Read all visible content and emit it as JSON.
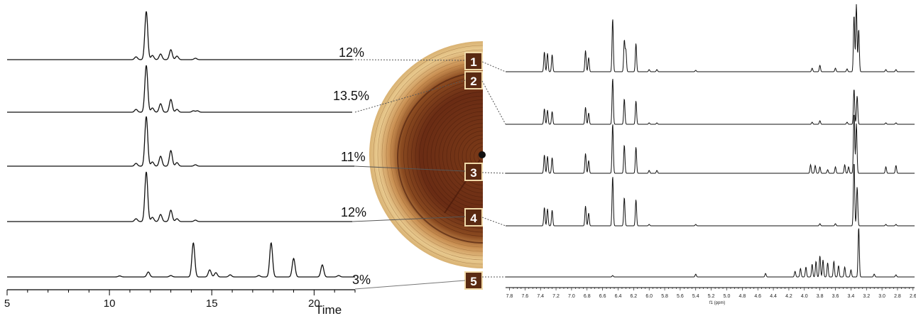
{
  "hplc": {
    "xaxis": {
      "ticks": [
        "5",
        "10",
        "15",
        "20"
      ],
      "label": "Time",
      "range": [
        5,
        22
      ]
    },
    "traces": [
      {
        "label": "12%",
        "peaks": [
          [
            11.3,
            4
          ],
          [
            11.8,
            68
          ],
          [
            12.1,
            6
          ],
          [
            12.5,
            8
          ],
          [
            13.0,
            14
          ],
          [
            13.3,
            5
          ],
          [
            14.2,
            2
          ]
        ]
      },
      {
        "label": "13.5%",
        "peaks": [
          [
            11.3,
            4
          ],
          [
            11.8,
            66
          ],
          [
            12.1,
            6
          ],
          [
            12.5,
            12
          ],
          [
            13.0,
            18
          ],
          [
            13.3,
            4
          ],
          [
            14.1,
            2
          ],
          [
            14.3,
            2
          ]
        ]
      },
      {
        "label": "11%",
        "peaks": [
          [
            11.3,
            4
          ],
          [
            11.8,
            70
          ],
          [
            12.1,
            6
          ],
          [
            12.5,
            14
          ],
          [
            13.0,
            22
          ],
          [
            13.3,
            5
          ],
          [
            14.2,
            2
          ]
        ]
      },
      {
        "label": "12%",
        "peaks": [
          [
            11.3,
            4
          ],
          [
            11.8,
            70
          ],
          [
            12.1,
            6
          ],
          [
            12.5,
            10
          ],
          [
            13.0,
            16
          ],
          [
            13.3,
            4
          ],
          [
            14.2,
            2
          ]
        ]
      },
      {
        "label": "3%",
        "peaks": [
          [
            10.5,
            1.5
          ],
          [
            11.9,
            7
          ],
          [
            13.0,
            2
          ],
          [
            14.1,
            48
          ],
          [
            14.9,
            10
          ],
          [
            15.2,
            6
          ],
          [
            15.9,
            3
          ],
          [
            17.3,
            2
          ],
          [
            17.9,
            48
          ],
          [
            19.0,
            26
          ],
          [
            20.4,
            17
          ],
          [
            21.2,
            2
          ]
        ]
      }
    ]
  },
  "wood": {
    "markers": [
      "1",
      "2",
      "3",
      "4",
      "5"
    ]
  },
  "nmr": {
    "xaxis": {
      "ticks": [
        "7.8",
        "7.6",
        "7.4",
        "7.2",
        "7.0",
        "6.8",
        "6.6",
        "6.4",
        "6.2",
        "6.0",
        "5.8",
        "5.6",
        "5.4",
        "5.2",
        "5.0",
        "4.8",
        "4.6",
        "4.4",
        "4.2",
        "4.0",
        "3.8",
        "3.6",
        "3.4",
        "3.2",
        "3.0",
        "2.8",
        "2.6"
      ],
      "label": "f1 (ppm)",
      "range": [
        7.85,
        2.58
      ]
    },
    "spectra": [
      {
        "peaks": [
          [
            7.35,
            28
          ],
          [
            7.31,
            26
          ],
          [
            7.25,
            24
          ],
          [
            6.82,
            30
          ],
          [
            6.78,
            20
          ],
          [
            6.47,
            75
          ],
          [
            6.32,
            44
          ],
          [
            6.3,
            30
          ],
          [
            6.17,
            40
          ],
          [
            6.0,
            3
          ],
          [
            5.9,
            3
          ],
          [
            5.4,
            2
          ],
          [
            3.9,
            5
          ],
          [
            3.8,
            9
          ],
          [
            3.6,
            5
          ],
          [
            3.45,
            4
          ],
          [
            3.36,
            80
          ],
          [
            3.33,
            95
          ],
          [
            3.3,
            60
          ],
          [
            2.95,
            3
          ],
          [
            2.82,
            3
          ]
        ]
      },
      {
        "peaks": [
          [
            7.35,
            22
          ],
          [
            7.31,
            20
          ],
          [
            7.25,
            18
          ],
          [
            6.82,
            24
          ],
          [
            6.78,
            16
          ],
          [
            6.47,
            65
          ],
          [
            6.32,
            36
          ],
          [
            6.17,
            33
          ],
          [
            6.0,
            2
          ],
          [
            5.9,
            2
          ],
          [
            3.9,
            3
          ],
          [
            3.8,
            5
          ],
          [
            3.45,
            3
          ],
          [
            3.36,
            50
          ],
          [
            3.32,
            40
          ],
          [
            2.95,
            2
          ],
          [
            2.82,
            2
          ]
        ]
      },
      {
        "peaks": [
          [
            7.35,
            26
          ],
          [
            7.31,
            24
          ],
          [
            7.25,
            22
          ],
          [
            6.82,
            28
          ],
          [
            6.78,
            18
          ],
          [
            6.47,
            70
          ],
          [
            6.32,
            40
          ],
          [
            6.17,
            37
          ],
          [
            6.0,
            4
          ],
          [
            5.9,
            4
          ],
          [
            3.92,
            12
          ],
          [
            3.86,
            11
          ],
          [
            3.8,
            9
          ],
          [
            3.7,
            5
          ],
          [
            3.6,
            9
          ],
          [
            3.48,
            12
          ],
          [
            3.43,
            9
          ],
          [
            3.36,
            85
          ],
          [
            3.33,
            70
          ],
          [
            2.95,
            9
          ],
          [
            2.82,
            11
          ]
        ]
      },
      {
        "peaks": [
          [
            7.35,
            26
          ],
          [
            7.31,
            24
          ],
          [
            7.25,
            22
          ],
          [
            6.82,
            28
          ],
          [
            6.78,
            18
          ],
          [
            6.47,
            70
          ],
          [
            6.32,
            40
          ],
          [
            6.17,
            37
          ],
          [
            6.0,
            2
          ],
          [
            5.4,
            2
          ],
          [
            3.8,
            3
          ],
          [
            3.6,
            3
          ],
          [
            3.36,
            90
          ],
          [
            3.32,
            55
          ],
          [
            2.95,
            2
          ],
          [
            2.82,
            2
          ]
        ]
      },
      {
        "peaks": [
          [
            6.47,
            2
          ],
          [
            5.4,
            4
          ],
          [
            4.5,
            5
          ],
          [
            4.12,
            8
          ],
          [
            4.05,
            12
          ],
          [
            3.98,
            14
          ],
          [
            3.9,
            18
          ],
          [
            3.85,
            22
          ],
          [
            3.8,
            30
          ],
          [
            3.76,
            24
          ],
          [
            3.7,
            20
          ],
          [
            3.62,
            22
          ],
          [
            3.56,
            16
          ],
          [
            3.48,
            14
          ],
          [
            3.4,
            10
          ],
          [
            3.3,
            70
          ],
          [
            3.1,
            4
          ],
          [
            2.82,
            3
          ]
        ]
      }
    ]
  },
  "colors": {
    "line": "#000000",
    "connector": "#555555",
    "marker_fill": "#5a2a12",
    "marker_border": "#f0d9a8",
    "wood_dark": "#5c2412",
    "wood_mid": "#9e5a26",
    "wood_light": "#e8c98e"
  }
}
